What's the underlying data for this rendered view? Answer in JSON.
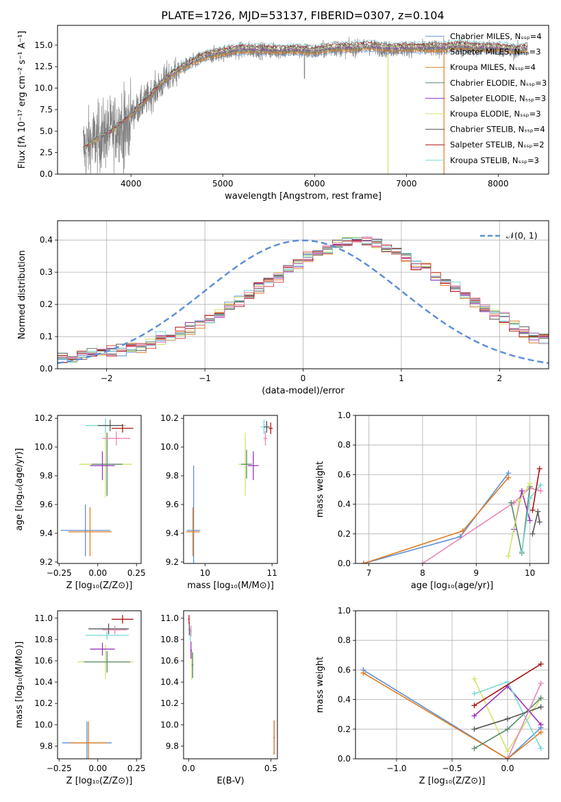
{
  "figure_title": "PLATE=1726, MJD=53137, FIBERID=0307, z=0.104",
  "model_colors": [
    "#5b8fd6",
    "#e07b20",
    "#9b30c0",
    "#cfe46a",
    "#d84a48",
    "#58886a",
    "#555555",
    "#aa1010",
    "#78d8d8",
    "#e884b8"
  ],
  "chart_data": [
    {
      "id": "spectrum",
      "type": "line",
      "title": "PLATE=1726, MJD=53137, FIBERID=0307, z=0.104",
      "xlabel": "wavelength [Angstrom, rest frame]",
      "ylabel": "Flux [fλ 10⁻¹⁷ erg cm⁻² s⁻¹ A⁻¹]",
      "xlim": [
        3200,
        8550
      ],
      "ylim": [
        0,
        17.3
      ],
      "xticks": [
        4000,
        5000,
        6000,
        7000,
        8000
      ],
      "yticks": [
        0.0,
        2.5,
        5.0,
        7.5,
        10.0,
        12.5,
        15.0
      ],
      "legend_position": "top-right",
      "observed": {
        "color": "#808080",
        "x": [
          3480,
          3600,
          3800,
          4000,
          4200,
          4400,
          4600,
          4800,
          5000,
          5200,
          5400,
          5600,
          5800,
          6000,
          6200,
          6400,
          6600,
          6800,
          7000,
          7200,
          7400,
          7600,
          7800,
          8000,
          8200,
          8320
        ],
        "y": [
          3.0,
          3.9,
          5.1,
          6.9,
          9.0,
          11.2,
          12.6,
          13.6,
          14.1,
          14.4,
          14.4,
          14.3,
          14.4,
          14.2,
          14.6,
          14.6,
          14.8,
          14.5,
          14.6,
          14.6,
          14.6,
          14.8,
          14.6,
          14.6,
          14.3,
          14.6
        ]
      },
      "series": [
        {
          "name": "Chabrier MILES, Nₛₛₚ=4",
          "color": "#5b8fd6"
        },
        {
          "name": "Salpeter MILES, Nₛₛₚ=3",
          "color": "#e07b20"
        },
        {
          "name": "Kroupa MILES, Nₛₛₚ=4",
          "color": "#e07b20"
        },
        {
          "name": "Chabrier ELODIE, Nₛₛₚ=3",
          "color": "#58886a"
        },
        {
          "name": "Salpeter ELODIE, Nₛₛₚ=3",
          "color": "#9b30c0"
        },
        {
          "name": "Kroupa ELODIE, Nₛₛₚ=3",
          "color": "#cfe46a"
        },
        {
          "name": "Chabrier STELIB, Nₛₛₚ=4",
          "color": "#555555"
        },
        {
          "name": "Salpeter STELIB, Nₛₛₚ=2",
          "color": "#aa1010"
        },
        {
          "name": "Kroupa STELIB, Nₛₛₚ=3",
          "color": "#78d8d8"
        }
      ]
    },
    {
      "id": "residuals",
      "type": "bar",
      "xlabel": "(data-model)/error",
      "ylabel": "Normed distribution",
      "xlim": [
        -2.5,
        2.5
      ],
      "ylim": [
        0,
        0.46
      ],
      "xticks": [
        -2,
        -1,
        0,
        1,
        2
      ],
      "yticks": [
        0.0,
        0.1,
        0.2,
        0.3,
        0.4
      ],
      "grid": true,
      "legend": "𝒩(0, 1)",
      "legend_position": "top-right",
      "bin_start": -2.5,
      "bin_width": 0.1,
      "reference_curve": {
        "type": "gaussian",
        "mean": 0,
        "sigma": 1,
        "color": "#5b8fd6"
      },
      "base_histogram": [
        0.035,
        0.035,
        0.04,
        0.045,
        0.05,
        0.055,
        0.06,
        0.065,
        0.07,
        0.08,
        0.09,
        0.1,
        0.11,
        0.125,
        0.14,
        0.155,
        0.17,
        0.19,
        0.21,
        0.23,
        0.25,
        0.27,
        0.29,
        0.31,
        0.33,
        0.35,
        0.36,
        0.375,
        0.385,
        0.395,
        0.4,
        0.395,
        0.385,
        0.375,
        0.36,
        0.35,
        0.33,
        0.31,
        0.29,
        0.27,
        0.25,
        0.23,
        0.21,
        0.19,
        0.17,
        0.15,
        0.13,
        0.115,
        0.1,
        0.09
      ]
    },
    {
      "id": "age_vs_Z",
      "type": "scatter",
      "xlabel": "Z [log₁₀(Z/Z⊙)]",
      "ylabel": "age  [log₁₀(age/yr)]",
      "xlim": [
        -0.26,
        0.28
      ],
      "ylim": [
        9.19,
        10.22
      ],
      "xticks": [
        -0.25,
        0.0,
        0.25
      ],
      "xticklabels": [
        "−0.25",
        "0.00",
        "0.25"
      ],
      "yticks": [
        9.2,
        9.4,
        9.6,
        9.8,
        10.0,
        10.2
      ],
      "errorbars": [
        {
          "c": 0,
          "x": -0.08,
          "y": 9.42,
          "xe": 0.16,
          "ye": 0.18
        },
        {
          "c": 1,
          "x": -0.05,
          "y": 9.41,
          "xe": 0.14,
          "ye": 0.17
        },
        {
          "c": 3,
          "x": 0.05,
          "y": 9.88,
          "xe": 0.17,
          "ye": 0.23
        },
        {
          "c": 5,
          "x": 0.06,
          "y": 9.88,
          "xe": 0.1,
          "ye": 0.22
        },
        {
          "c": 2,
          "x": 0.03,
          "y": 9.87,
          "xe": 0.08,
          "ye": 0.1
        },
        {
          "c": 8,
          "x": 0.05,
          "y": 10.15,
          "xe": 0.13,
          "ye": 0.05
        },
        {
          "c": 6,
          "x": 0.08,
          "y": 10.15,
          "xe": 0.08,
          "ye": 0.04
        },
        {
          "c": 7,
          "x": 0.16,
          "y": 10.13,
          "xe": 0.07,
          "ye": 0.03
        },
        {
          "c": 9,
          "x": 0.12,
          "y": 10.06,
          "xe": 0.09,
          "ye": 0.05
        }
      ]
    },
    {
      "id": "age_vs_mass",
      "type": "scatter",
      "xlabel": "mass [log₁₀(M/M⊙)]",
      "ylabel": "",
      "xlim": [
        9.68,
        11.08
      ],
      "ylim": [
        9.19,
        10.22
      ],
      "xticks": [
        10,
        11
      ],
      "xticklabels": [
        "10",
        "11"
      ],
      "yticks": [
        9.2,
        9.4,
        9.6,
        9.8,
        10.0,
        10.2
      ],
      "errorbars": [
        {
          "c": 0,
          "x": 9.83,
          "y": 9.42,
          "xe": 0.1,
          "ye": 0.45
        },
        {
          "c": 1,
          "x": 9.82,
          "y": 9.41,
          "xe": 0.1,
          "ye": 0.17
        },
        {
          "c": 3,
          "x": 10.6,
          "y": 9.88,
          "xe": 0.1,
          "ye": 0.22
        },
        {
          "c": 5,
          "x": 10.62,
          "y": 9.88,
          "xe": 0.08,
          "ye": 0.1
        },
        {
          "c": 2,
          "x": 10.72,
          "y": 9.87,
          "xe": 0.08,
          "ye": 0.1
        },
        {
          "c": 8,
          "x": 10.88,
          "y": 10.14,
          "xe": 0.05,
          "ye": 0.05
        },
        {
          "c": 6,
          "x": 10.92,
          "y": 10.14,
          "xe": 0.04,
          "ye": 0.04
        },
        {
          "c": 7,
          "x": 10.98,
          "y": 10.13,
          "xe": 0.03,
          "ye": 0.04
        },
        {
          "c": 9,
          "x": 10.9,
          "y": 10.06,
          "xe": 0.03,
          "ye": 0.05
        }
      ]
    },
    {
      "id": "massweight_vs_age",
      "type": "line",
      "xlabel": "age  [log₁₀(age/yr)]",
      "ylabel": "mass weight",
      "xlim": [
        6.75,
        10.35
      ],
      "ylim": [
        0,
        1
      ],
      "xticks": [
        7,
        8,
        9,
        10
      ],
      "xticklabels": [
        "7",
        "8",
        "9",
        "10"
      ],
      "yticks": [
        0.0,
        0.2,
        0.4,
        0.6,
        0.8,
        1.0
      ],
      "grid": true,
      "series": [
        {
          "c": 0,
          "x": [
            6.9,
            8.7,
            9.6
          ],
          "y": [
            0.0,
            0.18,
            0.61
          ]
        },
        {
          "c": 1,
          "x": [
            6.9,
            8.75,
            9.6
          ],
          "y": [
            0.0,
            0.22,
            0.58
          ]
        },
        {
          "c": 9,
          "x": [
            8.0,
            9.7,
            10.0,
            10.2
          ],
          "y": [
            0.0,
            0.41,
            0.51,
            0.49
          ]
        },
        {
          "c": 5,
          "x": [
            9.65,
            9.85,
            10.0
          ],
          "y": [
            0.41,
            0.07,
            0.52
          ]
        },
        {
          "c": 2,
          "x": [
            9.7,
            9.85,
            10.0
          ],
          "y": [
            0.23,
            0.49,
            0.29
          ]
        },
        {
          "c": 3,
          "x": [
            9.6,
            9.8,
            10.0
          ],
          "y": [
            0.05,
            0.42,
            0.54
          ]
        },
        {
          "c": 8,
          "x": [
            9.85,
            10.0,
            10.2
          ],
          "y": [
            0.08,
            0.44,
            0.53
          ]
        },
        {
          "c": 7,
          "x": [
            10.05,
            10.18
          ],
          "y": [
            0.36,
            0.64
          ]
        },
        {
          "c": 6,
          "x": [
            10.05,
            10.15,
            10.18
          ],
          "y": [
            0.2,
            0.35,
            0.28
          ]
        }
      ]
    },
    {
      "id": "mass_vs_Z",
      "type": "scatter",
      "xlabel": "Z [log₁₀(Z/Z⊙)]",
      "ylabel": "mass [log₁₀(M/M⊙)]",
      "xlim": [
        -0.26,
        0.28
      ],
      "ylim": [
        9.68,
        11.07
      ],
      "xticks": [
        -0.25,
        0.0,
        0.25
      ],
      "xticklabels": [
        "−0.25",
        "0.00",
        "0.25"
      ],
      "yticks": [
        9.8,
        10.0,
        10.2,
        10.4,
        10.6,
        10.8,
        11.0
      ],
      "errorbars": [
        {
          "c": 0,
          "x": -0.07,
          "y": 9.83,
          "xe": 0.16,
          "ye": 0.2
        },
        {
          "c": 1,
          "x": -0.06,
          "y": 9.83,
          "xe": 0.12,
          "ye": 0.2
        },
        {
          "c": 3,
          "x": 0.05,
          "y": 10.59,
          "xe": 0.18,
          "ye": 0.16
        },
        {
          "c": 5,
          "x": 0.06,
          "y": 10.59,
          "xe": 0.15,
          "ye": 0.1
        },
        {
          "c": 2,
          "x": 0.03,
          "y": 10.71,
          "xe": 0.08,
          "ye": 0.06
        },
        {
          "c": 6,
          "x": 0.07,
          "y": 10.9,
          "xe": 0.13,
          "ye": 0.05
        },
        {
          "c": 8,
          "x": 0.06,
          "y": 10.84,
          "xe": 0.14,
          "ye": 0.04
        },
        {
          "c": 7,
          "x": 0.16,
          "y": 10.99,
          "xe": 0.07,
          "ye": 0.04
        },
        {
          "c": 9,
          "x": 0.11,
          "y": 10.89,
          "xe": 0.08,
          "ye": 0.04
        }
      ]
    },
    {
      "id": "mass_vs_EBV",
      "type": "scatter",
      "xlabel": "E(B-V)",
      "ylabel": "",
      "xlim": [
        -0.03,
        0.54
      ],
      "ylim": [
        9.68,
        11.07
      ],
      "xticks": [
        0.0,
        0.5
      ],
      "xticklabels": [
        "0.0",
        "0.5"
      ],
      "yticks": [
        9.8,
        10.0,
        10.2,
        10.4,
        10.6,
        10.8,
        11.0
      ],
      "errorbars": [
        {
          "c": 0,
          "x": 0.52,
          "y": 9.88,
          "xe": 0.005,
          "ye": 0.16
        },
        {
          "c": 1,
          "x": 0.52,
          "y": 9.88,
          "xe": 0.005,
          "ye": 0.16
        },
        {
          "c": 3,
          "x": 0.02,
          "y": 10.56,
          "xe": 0.005,
          "ye": 0.14
        },
        {
          "c": 5,
          "x": 0.025,
          "y": 10.56,
          "xe": 0.005,
          "ye": 0.12
        },
        {
          "c": 2,
          "x": 0.015,
          "y": 10.7,
          "xe": 0.005,
          "ye": 0.08
        },
        {
          "c": 6,
          "x": 0.005,
          "y": 10.9,
          "xe": 0.004,
          "ye": 0.06
        },
        {
          "c": 8,
          "x": 0.01,
          "y": 10.84,
          "xe": 0.004,
          "ye": 0.06
        },
        {
          "c": 7,
          "x": 0.003,
          "y": 10.99,
          "xe": 0.004,
          "ye": 0.04
        },
        {
          "c": 9,
          "x": 0.015,
          "y": 10.88,
          "xe": 0.004,
          "ye": 0.05
        }
      ]
    },
    {
      "id": "massweight_vs_Z",
      "type": "line",
      "xlabel": "Z [log₁₀(Z/Z⊙)]",
      "ylabel": "mass weight",
      "xlim": [
        -1.37,
        0.37
      ],
      "ylim": [
        0,
        1
      ],
      "xticks": [
        -1.0,
        -0.5,
        0.0
      ],
      "xticklabels": [
        "−1.0",
        "−0.5",
        "0.0"
      ],
      "yticks": [
        0.0,
        0.2,
        0.4,
        0.6,
        0.8,
        1.0
      ],
      "grid": true,
      "series": [
        {
          "c": 0,
          "x": [
            -1.3,
            0.0,
            0.3
          ],
          "y": [
            0.6,
            0.0,
            0.21
          ]
        },
        {
          "c": 1,
          "x": [
            -1.3,
            0.0,
            0.3
          ],
          "y": [
            0.58,
            0.0,
            0.18
          ]
        },
        {
          "c": 3,
          "x": [
            -0.3,
            0.0,
            0.3
          ],
          "y": [
            0.54,
            0.05,
            0.41
          ]
        },
        {
          "c": 5,
          "x": [
            -0.3,
            0.0,
            0.3
          ],
          "y": [
            0.07,
            0.2,
            0.41
          ]
        },
        {
          "c": 2,
          "x": [
            -0.3,
            0.0,
            0.3
          ],
          "y": [
            0.29,
            0.49,
            0.23
          ]
        },
        {
          "c": 8,
          "x": [
            -0.3,
            0.0,
            0.3
          ],
          "y": [
            0.44,
            0.52,
            0.07
          ]
        },
        {
          "c": 6,
          "x": [
            -0.3,
            0.0,
            0.3
          ],
          "y": [
            0.2,
            0.27,
            0.35
          ]
        },
        {
          "c": 7,
          "x": [
            -0.3,
            0.3
          ],
          "y": [
            0.36,
            0.64
          ]
        },
        {
          "c": 9,
          "x": [
            0.0,
            0.3
          ],
          "y": [
            0.0,
            0.51
          ]
        }
      ]
    }
  ]
}
